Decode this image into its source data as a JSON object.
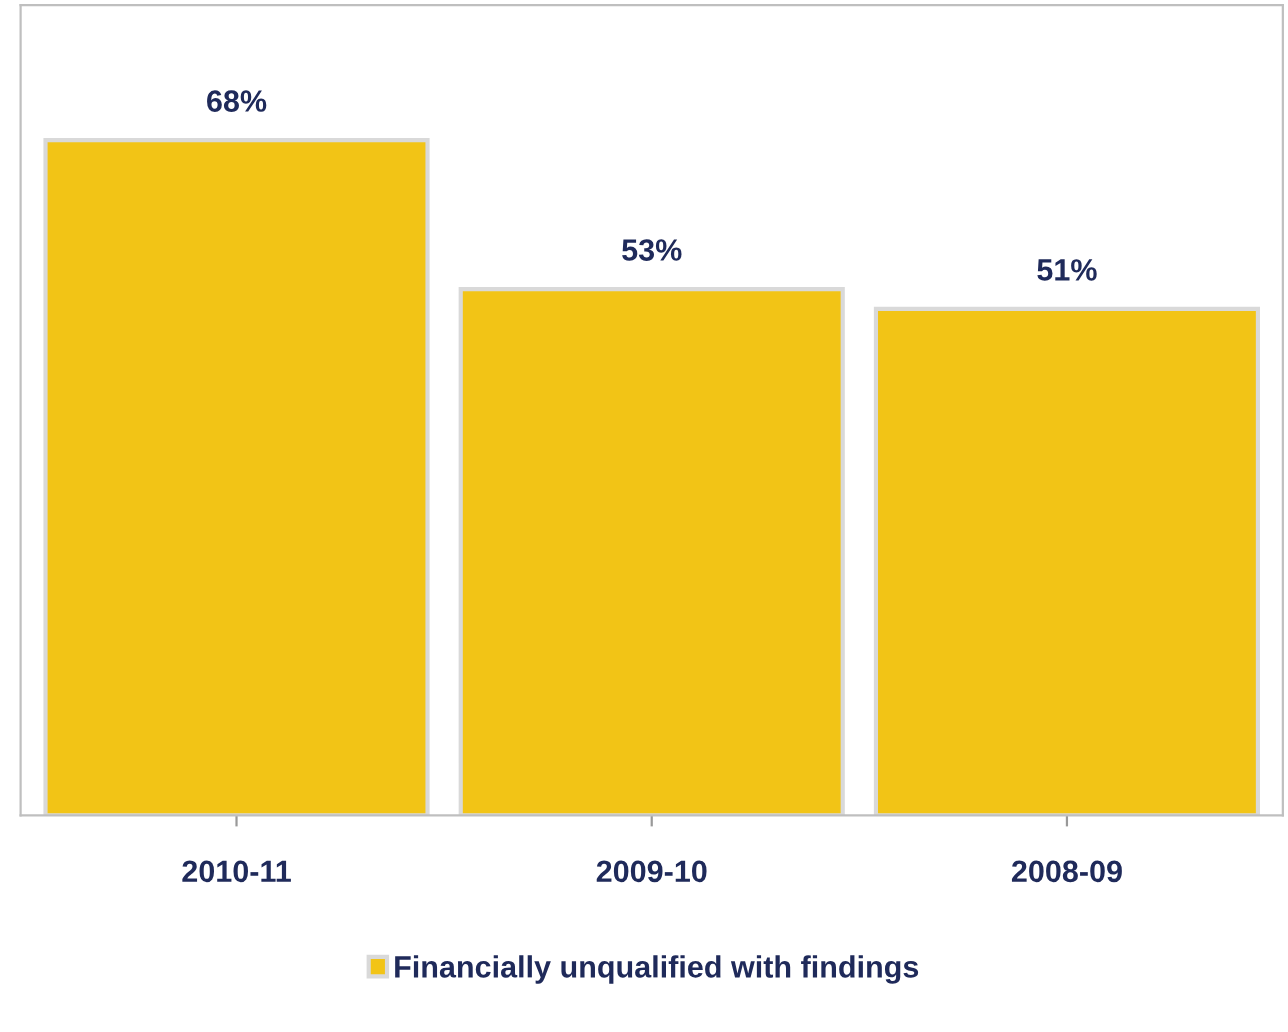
{
  "chart_data": {
    "type": "bar",
    "categories": [
      "2010-11",
      "2009-10",
      "2008-09"
    ],
    "series": [
      {
        "name": "Financially unqualified with findings",
        "color": "#f2c416",
        "values": [
          68,
          53,
          51
        ],
        "value_labels": [
          "68%",
          "53%",
          "51%"
        ]
      }
    ],
    "legend": "bottom",
    "grid": false
  }
}
